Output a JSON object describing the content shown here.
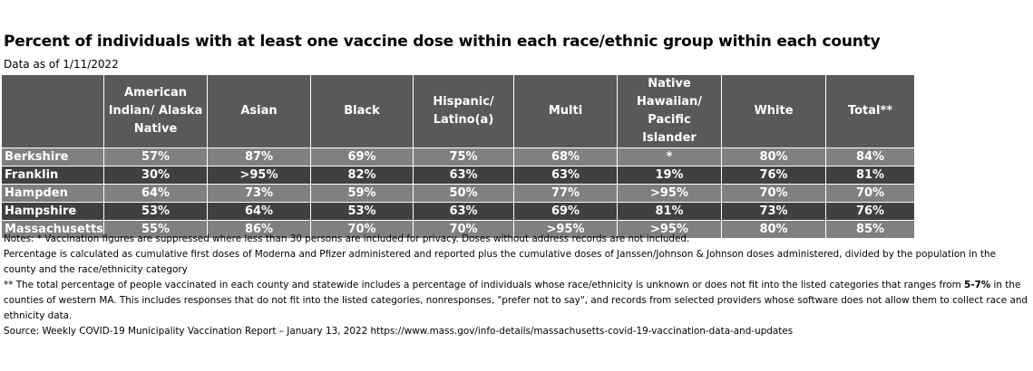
{
  "title": "Percent of individuals with at least one vaccine dose within each race/ethnic group within each county",
  "subtitle": "Data as of 1/11/2022",
  "table": {
    "headers": [
      "American Indian/ Alaska Native",
      "Asian",
      "Black",
      "Hispanic/ Latino(a)",
      "Multi",
      "Native Hawaiian/ Pacific Islander",
      "White",
      "Total**"
    ],
    "rows": [
      [
        "Berkshire",
        "57%",
        "87%",
        "69%",
        "75%",
        "68%",
        "*",
        "80%",
        "84%"
      ],
      [
        "Franklin",
        "30%",
        ">95%",
        "82%",
        "63%",
        "63%",
        "19%",
        "76%",
        "81%"
      ],
      [
        "Hampden",
        "64%",
        "73%",
        "59%",
        "50%",
        "77%",
        ">95%",
        "70%",
        "70%"
      ],
      [
        "Hampshire",
        "53%",
        "64%",
        "53%",
        "63%",
        "69%",
        "81%",
        "73%",
        "76%"
      ],
      [
        "Massachusetts",
        "55%",
        "86%",
        "70%",
        "70%",
        ">95%",
        ">95%",
        "80%",
        "85%"
      ]
    ]
  },
  "notes": [
    "Notes: * Vaccination figures are suppressed where less than 30 persons are included for privacy. Doses without address records are not included.",
    "Percentage is calculated as cumulative first doses of Moderna and Pfizer administered and reported plus the cumulative doses of Janssen/Johnson & Johnson doses administered, divided by the population in the county and the race/ethnicity category",
    [
      "** The total percentage of people vaccinated in each county and statewide includes a percentage of individuals whose race/ethnicity is unknown or does not fit into the listed categories that ranges from ",
      "5-7%",
      " in the counties of western MA.  This includes responses that do not fit into the listed categories, nonresponses, \"prefer not to say\", and records from selected providers whose software does not allow them to collect race and ethnicity data."
    ],
    "Source: Weekly COVID-19 Municipality Vaccination Report – January 13, 2022 https://www.mass.gov/info-details/massachusetts-covid-19-vaccination-data-and-updates"
  ]
}
